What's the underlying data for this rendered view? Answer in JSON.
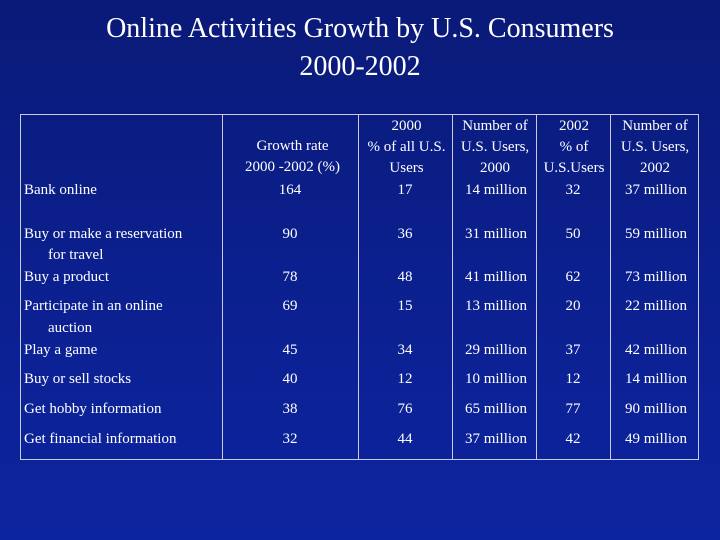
{
  "title": {
    "line1": "Online Activities  Growth by U.S. Consumers",
    "line2": "2000-2002"
  },
  "headers": {
    "growth": [
      "Growth  rate",
      "2000 -2002  (%)"
    ],
    "pct2000": [
      "2000",
      "% of all U.S.",
      "Users"
    ],
    "num2000": [
      "Number of",
      "U.S. Users,",
      "2000"
    ],
    "pct2002": [
      "2002",
      "% of",
      "U.S.Users"
    ],
    "num2002": [
      "Number of",
      "U.S. Users,",
      "2002"
    ]
  },
  "rows": [
    {
      "activity": [
        "Bank online"
      ],
      "growth": "164",
      "pct2000": "17",
      "num2000": "14 million",
      "pct2002": "32",
      "num2002": "37 million"
    },
    {
      "activity": [
        "Buy or make a reservation",
        "for travel"
      ],
      "growth": "90",
      "pct2000": "36",
      "num2000": "31 million",
      "pct2002": "50",
      "num2002": "59 million"
    },
    {
      "activity": [
        "Buy a product"
      ],
      "growth": "78",
      "pct2000": "48",
      "num2000": "41 million",
      "pct2002": "62",
      "num2002": "73 million"
    },
    {
      "activity": [
        "Participate in an online",
        "auction"
      ],
      "growth": "69",
      "pct2000": "15",
      "num2000": "13 million",
      "pct2002": "20",
      "num2002": "22 million"
    },
    {
      "activity": [
        "Play a game"
      ],
      "growth": "45",
      "pct2000": "34",
      "num2000": "29 million",
      "pct2002": "37",
      "num2002": "42 million"
    },
    {
      "activity": [
        "Buy or sell stocks"
      ],
      "growth": "40",
      "pct2000": "12",
      "num2000": "10 million",
      "pct2002": "12",
      "num2002": "14 million"
    },
    {
      "activity": [
        "Get hobby information"
      ],
      "growth": "38",
      "pct2000": "76",
      "num2000": "65 million",
      "pct2002": "77",
      "num2002": "90 million"
    },
    {
      "activity": [
        "Get financial information"
      ],
      "growth": "32",
      "pct2000": "44",
      "num2000": "37 million",
      "pct2002": "42",
      "num2002": "49 million"
    }
  ]
}
